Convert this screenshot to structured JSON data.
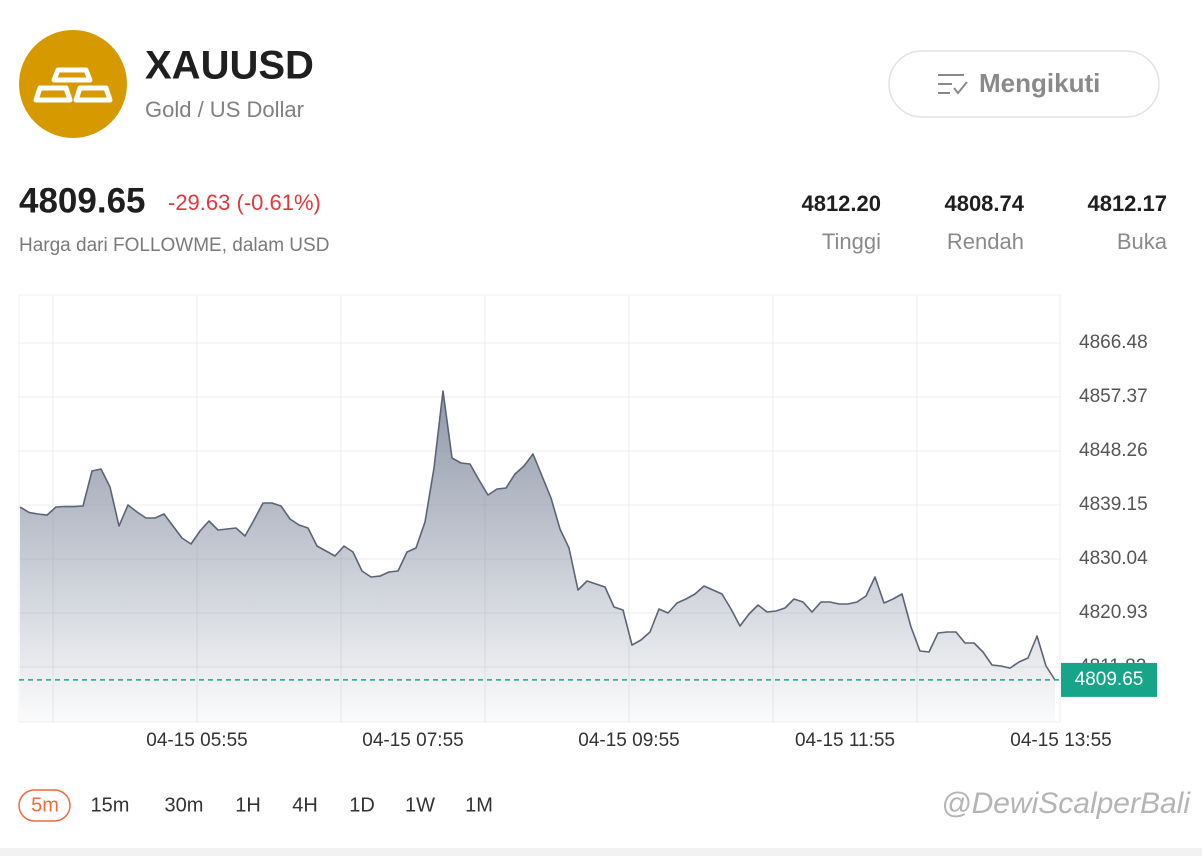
{
  "header": {
    "symbol": "XAUUSD",
    "name": "Gold / US Dollar",
    "follow_button": "Mengikuti"
  },
  "quote": {
    "price": "4809.65",
    "change": "-29.63 (-0.61%)",
    "source": "Harga dari FOLLOWME, dalam USD",
    "stats": [
      {
        "value": "4812.20",
        "label": "Tinggi"
      },
      {
        "value": "4808.74",
        "label": "Rendah"
      },
      {
        "value": "4812.17",
        "label": "Buka"
      }
    ]
  },
  "chart_data": {
    "type": "area",
    "categories": [
      null,
      null,
      null,
      null,
      null,
      null,
      null,
      null,
      null,
      null,
      null,
      null,
      null,
      null,
      null,
      null,
      null,
      null,
      null,
      "04-15 05:55",
      null,
      null,
      null,
      null,
      null,
      null,
      null,
      null,
      null,
      null,
      null,
      null,
      null,
      null,
      null,
      null,
      null,
      null,
      null,
      null,
      null,
      null,
      null,
      "04-15 07:55",
      null,
      null,
      null,
      null,
      null,
      null,
      null,
      null,
      null,
      null,
      null,
      null,
      null,
      null,
      null,
      null,
      null,
      null,
      null,
      null,
      null,
      null,
      null,
      "04-15 09:55",
      null,
      null,
      null,
      null,
      null,
      null,
      null,
      null,
      null,
      null,
      null,
      null,
      null,
      null,
      null,
      null,
      null,
      null,
      null,
      null,
      null,
      null,
      null,
      "04-15 11:55",
      null,
      null,
      null,
      null,
      null,
      null,
      null,
      null,
      null,
      null,
      null,
      null,
      null,
      null,
      null,
      null,
      null,
      null,
      null,
      null,
      null,
      null,
      null,
      "04-15 13:55"
    ],
    "values": [
      4838.81,
      4837.9,
      4837.63,
      4837.46,
      4838.81,
      4838.91,
      4838.88,
      4838.98,
      4844.89,
      4845.22,
      4842.19,
      4835.61,
      4839.15,
      4837.97,
      4836.96,
      4836.96,
      4837.63,
      4835.61,
      4833.59,
      4832.57,
      4834.77,
      4836.45,
      4834.93,
      4835.1,
      4835.27,
      4833.92,
      4836.62,
      4839.49,
      4839.49,
      4838.98,
      4836.79,
      4835.78,
      4835.27,
      4832.24,
      4831.39,
      4830.55,
      4832.24,
      4831.22,
      4828.02,
      4827.01,
      4827.17,
      4827.85,
      4828.02,
      4831.22,
      4831.9,
      4836.28,
      4845.39,
      4858.38,
      4847.08,
      4846.24,
      4846.07,
      4843.37,
      4840.84,
      4841.85,
      4842.02,
      4844.38,
      4845.73,
      4847.76,
      4844.04,
      4840.33,
      4835.1,
      4831.9,
      4824.81,
      4826.33,
      4825.83,
      4825.32,
      4821.95,
      4821.44,
      4815.54,
      4816.38,
      4817.73,
      4821.61,
      4820.93,
      4822.62,
      4823.3,
      4824.14,
      4825.49,
      4824.81,
      4824.14,
      4821.61,
      4818.74,
      4820.76,
      4822.28,
      4821.1,
      4821.27,
      4821.78,
      4823.3,
      4822.79,
      4821.1,
      4822.79,
      4822.79,
      4822.45,
      4822.45,
      4822.79,
      4823.8,
      4827.01,
      4822.62,
      4823.3,
      4824.14,
      4818.57,
      4814.52,
      4814.36,
      4817.56,
      4817.73,
      4817.73,
      4815.87,
      4815.87,
      4814.36,
      4812.16,
      4811.99,
      4811.65,
      4812.67,
      4813.34,
      4817.05,
      4811.99,
      4809.63
    ],
    "color": "#5b6477",
    "ylim": [
      4802.55,
      4874.58
    ],
    "yticks": [
      4811.82,
      4820.93,
      4830.04,
      4839.15,
      4848.26,
      4857.37,
      4866.48
    ],
    "grid": true,
    "last_value": 4809.65,
    "last_value_color": "#17a589"
  },
  "timeframes": [
    "5m",
    "15m",
    "30m",
    "1H",
    "4H",
    "1D",
    "1W",
    "1M"
  ],
  "watermark": "@DewiScalperBali"
}
